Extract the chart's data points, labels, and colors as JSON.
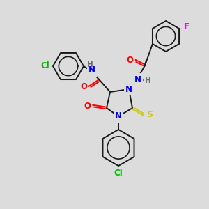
{
  "background_color": "#dcdcdc",
  "bond_color": "#1a1a1a",
  "atom_colors": {
    "N": "#0000ff",
    "O": "#ff0000",
    "S": "#cccc00",
    "F": "#ff00ff",
    "Cl": "#00bb00",
    "H_label": "#6a6a6a"
  },
  "figsize": [
    3.0,
    3.0
  ],
  "dpi": 100,
  "ring_r": 22,
  "lw": 1.4
}
